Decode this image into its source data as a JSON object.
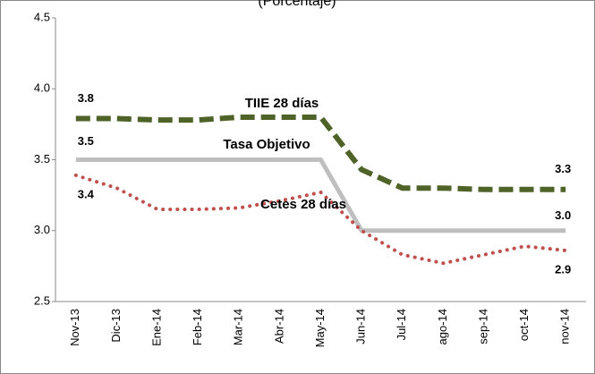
{
  "chart_data": {
    "type": "line",
    "title": "(Porcentaje)",
    "categories": [
      "Nov-13",
      "Dic-13",
      "Ene-14",
      "Feb-14",
      "Mar-14",
      "Abr-14",
      "May-14",
      "Jun-14",
      "Jul-14",
      "ago-14",
      "sep-14",
      "oct-14",
      "nov-14"
    ],
    "series": [
      {
        "name": "TIIE 28 días",
        "color": "#4f6228",
        "style": "dashed",
        "values": [
          3.79,
          3.79,
          3.78,
          3.78,
          3.8,
          3.8,
          3.8,
          3.43,
          3.3,
          3.3,
          3.29,
          3.29,
          3.29
        ],
        "value_labels": [
          "3.8",
          null,
          null,
          null,
          null,
          null,
          null,
          null,
          null,
          null,
          null,
          null,
          "3.3"
        ]
      },
      {
        "name": "Tasa Objetivo",
        "color": "#bfbfbf",
        "style": "solid",
        "values": [
          3.5,
          3.5,
          3.5,
          3.5,
          3.5,
          3.5,
          3.5,
          3.0,
          3.0,
          3.0,
          3.0,
          3.0,
          3.0
        ],
        "value_labels": [
          "3.5",
          null,
          null,
          null,
          null,
          null,
          null,
          null,
          null,
          null,
          null,
          null,
          "3.0"
        ]
      },
      {
        "name": "Cetes 28 días",
        "color": "#c0504d",
        "style": "dotted",
        "values": [
          3.39,
          3.3,
          3.15,
          3.15,
          3.16,
          3.21,
          3.27,
          3.0,
          2.83,
          2.77,
          2.83,
          2.89,
          2.86
        ],
        "value_labels": [
          "3.4",
          null,
          null,
          null,
          null,
          null,
          null,
          null,
          null,
          null,
          null,
          null,
          "2.9"
        ]
      }
    ],
    "ylim": [
      2.5,
      4.5
    ],
    "yticks": [
      2.5,
      {
        "value": 3,
        "label": "3.0"
      },
      3.5,
      {
        "value": 4,
        "label": "4.0"
      },
      4.5
    ],
    "grid": false
  }
}
